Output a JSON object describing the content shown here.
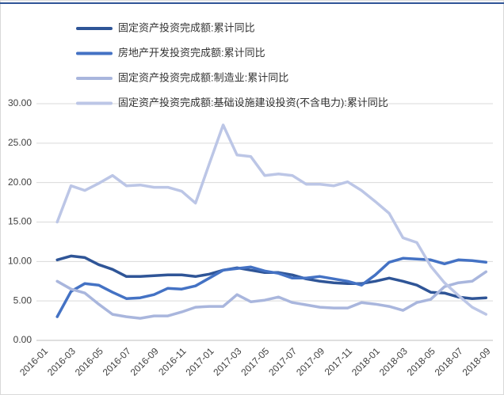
{
  "chart_data": {
    "type": "line",
    "categories": [
      "2016-01",
      null,
      "2016-03",
      null,
      "2016-05",
      null,
      "2016-07",
      null,
      "2016-09",
      null,
      "2016-11",
      null,
      "2017-01",
      null,
      "2017-03",
      null,
      "2017-05",
      null,
      "2017-07",
      null,
      "2017-09",
      null,
      "2017-11",
      null,
      "2018-01",
      null,
      "2018-03",
      null,
      "2018-05",
      null,
      "2018-07",
      null,
      "2018-09"
    ],
    "series": [
      {
        "name": "固定资产投资完成额:累计同比",
        "color": "#2f5597",
        "values": [
          null,
          10.2,
          10.7,
          10.5,
          9.6,
          9.0,
          8.1,
          8.1,
          8.2,
          8.3,
          8.3,
          8.1,
          8.4,
          8.9,
          9.2,
          8.9,
          8.6,
          8.6,
          8.3,
          7.8,
          7.5,
          7.3,
          7.2,
          7.2,
          7.5,
          7.9,
          7.5,
          7.0,
          6.1,
          6.0,
          5.5,
          5.3,
          5.4
        ]
      },
      {
        "name": "房地产开发投资完成额:累计同比",
        "color": "#4472c4",
        "values": [
          null,
          3.0,
          6.2,
          7.2,
          7.0,
          6.1,
          5.3,
          5.4,
          5.8,
          6.6,
          6.5,
          6.9,
          7.9,
          8.9,
          9.1,
          9.3,
          8.8,
          8.5,
          7.9,
          7.9,
          8.1,
          7.8,
          7.5,
          7.0,
          8.3,
          9.9,
          10.4,
          10.3,
          10.2,
          9.7,
          10.2,
          10.1,
          9.9
        ]
      },
      {
        "name": "固定资产投资完成额:制造业:累计同比",
        "color": "#a9b6dd",
        "values": [
          null,
          7.5,
          6.5,
          6.0,
          4.6,
          3.3,
          3.0,
          2.8,
          3.1,
          3.1,
          3.6,
          4.2,
          4.3,
          4.3,
          5.8,
          4.9,
          5.1,
          5.5,
          4.8,
          4.5,
          4.2,
          4.1,
          4.1,
          4.8,
          4.6,
          4.3,
          3.8,
          4.8,
          5.2,
          6.8,
          7.3,
          7.5,
          8.7
        ]
      },
      {
        "name": "固定资产投资完成额:基础设施建设投资(不含电力):累计同比",
        "color": "#bcc6e6",
        "values": [
          null,
          15.0,
          19.6,
          19.0,
          19.9,
          20.9,
          19.6,
          19.7,
          19.4,
          19.4,
          18.9,
          17.4,
          22.4,
          27.3,
          23.5,
          23.3,
          20.9,
          21.1,
          20.9,
          19.8,
          19.8,
          19.6,
          20.1,
          19.0,
          17.6,
          16.1,
          13.0,
          12.4,
          9.4,
          7.3,
          5.7,
          4.2,
          3.3
        ]
      }
    ],
    "ylim": [
      0,
      30
    ],
    "yticks": [
      {
        "value": 0,
        "label": "0.00"
      },
      {
        "value": 5,
        "label": "5.00"
      },
      {
        "value": 10,
        "label": "10.00"
      },
      {
        "value": 15,
        "label": "15.00"
      },
      {
        "value": 20,
        "label": "20.00"
      },
      {
        "value": 25,
        "label": "25.00"
      },
      {
        "value": 30,
        "label": "30.00"
      }
    ],
    "grid": true
  }
}
